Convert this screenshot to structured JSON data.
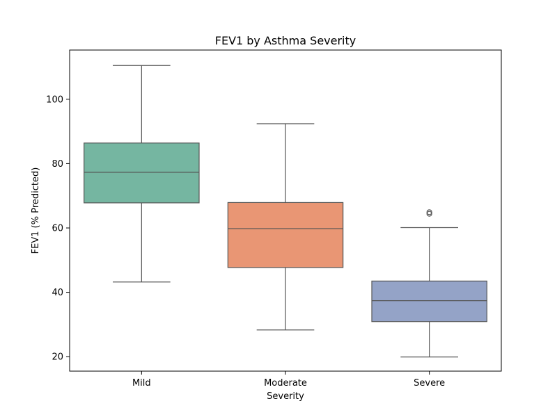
{
  "chart_data": {
    "type": "box",
    "title": "FEV1 by Asthma Severity",
    "xlabel": "Severity",
    "ylabel": "FEV1 (% Predicted)",
    "ylim": [
      15.5,
      115.3
    ],
    "yticks": [
      20,
      40,
      60,
      80,
      100
    ],
    "yticklabels": [
      "20",
      "40",
      "60",
      "80",
      "100"
    ],
    "categories": [
      "Mild",
      "Moderate",
      "Severe"
    ],
    "grid": false,
    "legend": "none",
    "boxes": [
      {
        "category": "Mild",
        "whisker_low": 43.2,
        "q1": 67.8,
        "median": 77.3,
        "q3": 86.4,
        "whisker_high": 110.5,
        "outliers": [],
        "color": "#75b6a1"
      },
      {
        "category": "Moderate",
        "whisker_low": 28.3,
        "q1": 47.7,
        "median": 59.8,
        "q3": 67.9,
        "whisker_high": 92.4,
        "outliers": [],
        "color": "#e99674"
      },
      {
        "category": "Severe",
        "whisker_low": 19.9,
        "q1": 30.9,
        "median": 37.4,
        "q3": 43.5,
        "whisker_high": 60.1,
        "outliers": [
          64.4,
          64.9
        ],
        "color": "#94a3c7"
      }
    ],
    "line_color": "#555555"
  }
}
